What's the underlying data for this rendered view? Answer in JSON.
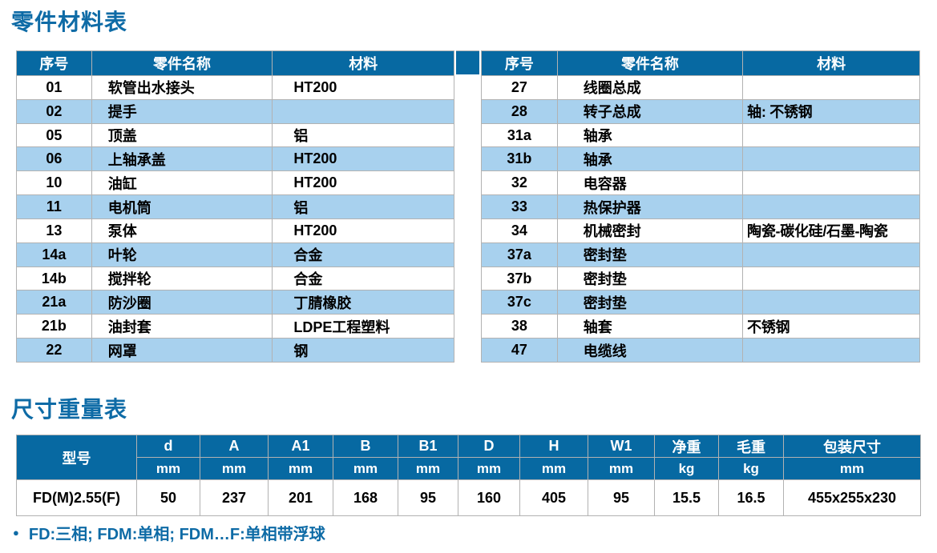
{
  "titles": {
    "parts": "零件材料表",
    "dims": "尺寸重量表"
  },
  "colors": {
    "header_bg": "#0769a2",
    "stripe_bg": "#a8d1ee",
    "title_text": "#0e6ba6",
    "border_gray": "#b2b2b2",
    "cell_text": "#000000"
  },
  "parts_table": {
    "headers": [
      "序号",
      "零件名称",
      "材料"
    ],
    "left_rows": [
      {
        "no": "01",
        "name": "软管出水接头",
        "material": "HT200"
      },
      {
        "no": "02",
        "name": "提手",
        "material": ""
      },
      {
        "no": "05",
        "name": "顶盖",
        "material": "铝"
      },
      {
        "no": "06",
        "name": "上轴承盖",
        "material": "HT200"
      },
      {
        "no": "10",
        "name": "油缸",
        "material": "HT200"
      },
      {
        "no": "11",
        "name": "电机筒",
        "material": "铝"
      },
      {
        "no": "13",
        "name": "泵体",
        "material": "HT200"
      },
      {
        "no": "14a",
        "name": "叶轮",
        "material": "合金"
      },
      {
        "no": "14b",
        "name": "搅拌轮",
        "material": "合金"
      },
      {
        "no": "21a",
        "name": "防沙圈",
        "material": "丁腈橡胶"
      },
      {
        "no": "21b",
        "name": "油封套",
        "material": "LDPE工程塑料"
      },
      {
        "no": "22",
        "name": "网罩",
        "material": "钢"
      }
    ],
    "right_rows": [
      {
        "no": "27",
        "name": "线圈总成",
        "material": ""
      },
      {
        "no": "28",
        "name": "转子总成",
        "material": "轴: 不锈钢"
      },
      {
        "no": "31a",
        "name": "轴承",
        "material": ""
      },
      {
        "no": "31b",
        "name": "轴承",
        "material": ""
      },
      {
        "no": "32",
        "name": "电容器",
        "material": ""
      },
      {
        "no": "33",
        "name": "热保护器",
        "material": ""
      },
      {
        "no": "34",
        "name": "机械密封",
        "material": "陶瓷-碳化硅/石墨-陶瓷"
      },
      {
        "no": "37a",
        "name": "密封垫",
        "material": ""
      },
      {
        "no": "37b",
        "name": "密封垫",
        "material": ""
      },
      {
        "no": "37c",
        "name": "密封垫",
        "material": ""
      },
      {
        "no": "38",
        "name": "轴套",
        "material": "不锈钢"
      },
      {
        "no": "47",
        "name": "电缆线",
        "material": ""
      }
    ]
  },
  "dims_table": {
    "model_header": "型号",
    "columns": [
      {
        "label": "d",
        "unit": "mm"
      },
      {
        "label": "A",
        "unit": "mm"
      },
      {
        "label": "A1",
        "unit": "mm"
      },
      {
        "label": "B",
        "unit": "mm"
      },
      {
        "label": "B1",
        "unit": "mm"
      },
      {
        "label": "D",
        "unit": "mm"
      },
      {
        "label": "H",
        "unit": "mm"
      },
      {
        "label": "W1",
        "unit": "mm"
      },
      {
        "label": "净重",
        "unit": "kg"
      },
      {
        "label": "毛重",
        "unit": "kg"
      },
      {
        "label": "包装尺寸",
        "unit": "mm"
      }
    ],
    "row": {
      "model": "FD(M)2.55(F)",
      "values": [
        "50",
        "237",
        "201",
        "168",
        "95",
        "160",
        "405",
        "95",
        "15.5",
        "16.5",
        "455x255x230"
      ]
    }
  },
  "footnote": {
    "bullet": "●",
    "text": "FD:三相; FDM:单相; FDM…F:单相带浮球"
  }
}
